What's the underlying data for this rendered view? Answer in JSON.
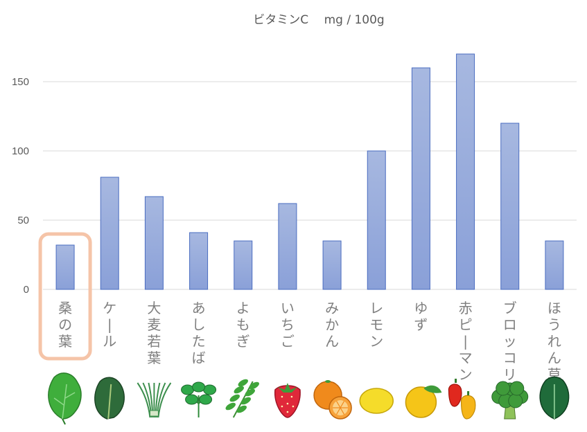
{
  "chart_data": {
    "type": "bar",
    "title": "ビタミンC　 mg / 100g",
    "xlabel": "",
    "ylabel": "",
    "ylim": [
      0,
      170
    ],
    "yticks": [
      "0",
      "50",
      "100",
      "150"
    ],
    "grid": true,
    "categories": [
      "桑の葉",
      "ケール",
      "大麦若葉",
      "あしたば",
      "よもぎ",
      "いちご",
      "みかん",
      "レモン",
      "ゆず",
      "赤ピーマン",
      "ブロッコリー",
      "ほうれん草"
    ],
    "values": [
      32,
      81,
      67,
      41,
      35,
      62,
      35,
      100,
      160,
      170,
      120,
      35
    ],
    "highlighted_category": "桑の葉",
    "bar_color_top": "#a7b8e0",
    "bar_color_bottom": "#8aa0d8",
    "bar_edge_color": "#4a6cc0",
    "highlight_color": "#f5c4a8",
    "icons": [
      "mulberry-leaf-icon",
      "kale-icon",
      "barley-grass-icon",
      "ashitaba-icon",
      "mugwort-icon",
      "strawberry-icon",
      "mandarin-orange-icon",
      "lemon-icon",
      "yuzu-icon",
      "red-pepper-icon",
      "broccoli-icon",
      "spinach-icon"
    ]
  }
}
